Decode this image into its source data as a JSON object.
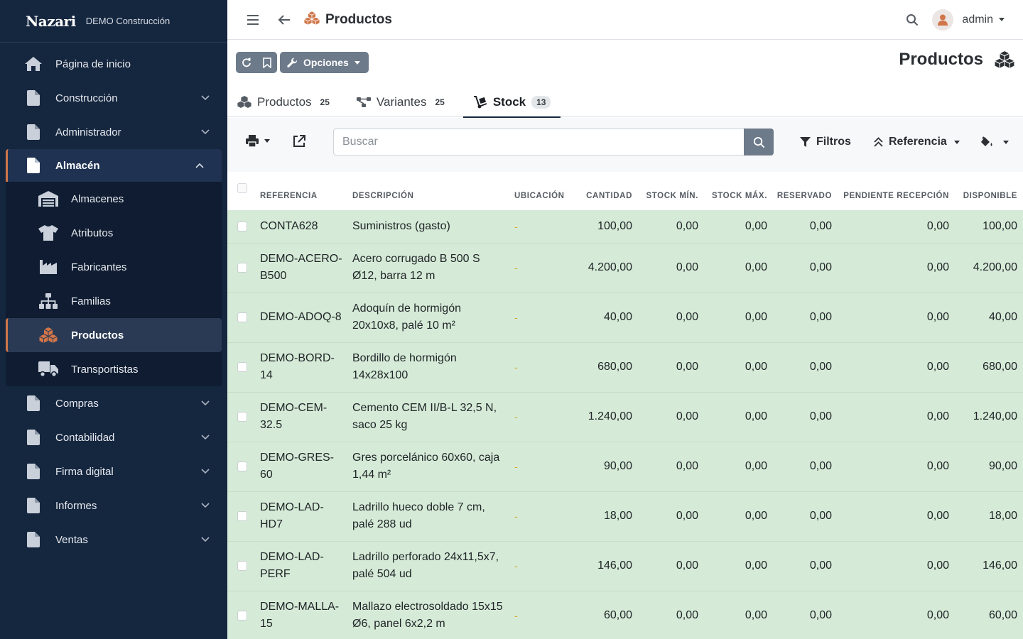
{
  "brand": {
    "logo": "Nazari",
    "company": "DEMO Construcción"
  },
  "sidebar": {
    "items_top": [
      {
        "label": "Página de inicio",
        "icon": "home-icon"
      },
      {
        "label": "Construcción",
        "icon": "file-icon"
      },
      {
        "label": "Administrador",
        "icon": "file-icon"
      }
    ],
    "open_group": {
      "label": "Almacén",
      "icon": "file-icon",
      "children": [
        {
          "label": "Almacenes",
          "icon": "warehouse-icon"
        },
        {
          "label": "Atributos",
          "icon": "tshirt-icon"
        },
        {
          "label": "Fabricantes",
          "icon": "industry-icon"
        },
        {
          "label": "Familias",
          "icon": "sitemap-icon"
        },
        {
          "label": "Productos",
          "icon": "cubes-icon"
        },
        {
          "label": "Transportistas",
          "icon": "truck-icon"
        }
      ]
    },
    "items_bottom": [
      {
        "label": "Compras",
        "icon": "file-icon"
      },
      {
        "label": "Contabilidad",
        "icon": "file-icon"
      },
      {
        "label": "Firma digital",
        "icon": "file-icon"
      },
      {
        "label": "Informes",
        "icon": "file-icon"
      },
      {
        "label": "Ventas",
        "icon": "file-icon"
      }
    ]
  },
  "topbar": {
    "title": "Productos",
    "user": "admin"
  },
  "toolbar": {
    "options_label": "Opciones"
  },
  "page_heading": "Productos",
  "tabs": [
    {
      "label": "Productos",
      "count": "25",
      "icon": "cubes-icon"
    },
    {
      "label": "Variantes",
      "count": "25",
      "icon": "project-diagram-icon"
    },
    {
      "label": "Stock",
      "count": "13",
      "icon": "dolly-icon",
      "active": true
    }
  ],
  "search": {
    "placeholder": "Buscar"
  },
  "filters": {
    "filters_label": "Filtros",
    "sort_label": "Referencia"
  },
  "table": {
    "columns": [
      "REFERENCIA",
      "DESCRIPCIÓN",
      "UBICACIÓN",
      "CANTIDAD",
      "STOCK MÍN.",
      "STOCK MÁX.",
      "RESERVADO",
      "PENDIENTE RECEPCIÓN",
      "DISPONIBLE"
    ],
    "rows": [
      {
        "ref": "CONTA628",
        "desc": "Suministros (gasto)",
        "loc": "-",
        "qty": "100,00",
        "min": "0,00",
        "max": "0,00",
        "res": "0,00",
        "pend": "0,00",
        "disp": "100,00"
      },
      {
        "ref": "DEMO-ACERO-B500",
        "desc": "Acero corrugado B 500 S Ø12, barra 12 m",
        "loc": "-",
        "qty": "4.200,00",
        "min": "0,00",
        "max": "0,00",
        "res": "0,00",
        "pend": "0,00",
        "disp": "4.200,00"
      },
      {
        "ref": "DEMO-ADOQ-8",
        "desc": "Adoquín de hormigón 20x10x8, palé 10 m²",
        "loc": "-",
        "qty": "40,00",
        "min": "0,00",
        "max": "0,00",
        "res": "0,00",
        "pend": "0,00",
        "disp": "40,00"
      },
      {
        "ref": "DEMO-BORD-14",
        "desc": "Bordillo de hormigón 14x28x100",
        "loc": "-",
        "qty": "680,00",
        "min": "0,00",
        "max": "0,00",
        "res": "0,00",
        "pend": "0,00",
        "disp": "680,00"
      },
      {
        "ref": "DEMO-CEM-32.5",
        "desc": "Cemento CEM II/B-L 32,5 N, saco 25 kg",
        "loc": "-",
        "qty": "1.240,00",
        "min": "0,00",
        "max": "0,00",
        "res": "0,00",
        "pend": "0,00",
        "disp": "1.240,00"
      },
      {
        "ref": "DEMO-GRES-60",
        "desc": "Gres porcelánico 60x60, caja 1,44 m²",
        "loc": "-",
        "qty": "90,00",
        "min": "0,00",
        "max": "0,00",
        "res": "0,00",
        "pend": "0,00",
        "disp": "90,00"
      },
      {
        "ref": "DEMO-LAD-HD7",
        "desc": "Ladrillo hueco doble 7 cm, palé 288 ud",
        "loc": "-",
        "qty": "18,00",
        "min": "0,00",
        "max": "0,00",
        "res": "0,00",
        "pend": "0,00",
        "disp": "18,00"
      },
      {
        "ref": "DEMO-LAD-PERF",
        "desc": "Ladrillo perforado 24x11,5x7, palé 504 ud",
        "loc": "-",
        "qty": "146,00",
        "min": "0,00",
        "max": "0,00",
        "res": "0,00",
        "pend": "0,00",
        "disp": "146,00"
      },
      {
        "ref": "DEMO-MALLA-15",
        "desc": "Mallazo electrosoldado 15x15 Ø6, panel 6x2,2 m",
        "loc": "-",
        "qty": "60,00",
        "min": "0,00",
        "max": "0,00",
        "res": "0,00",
        "pend": "0,00",
        "disp": "60,00"
      }
    ]
  },
  "colors": {
    "sidebar_bg": "#15263f",
    "accent": "#d0764a",
    "row_bg": "#d5ebd7",
    "button_bg": "#6c7a8a"
  }
}
